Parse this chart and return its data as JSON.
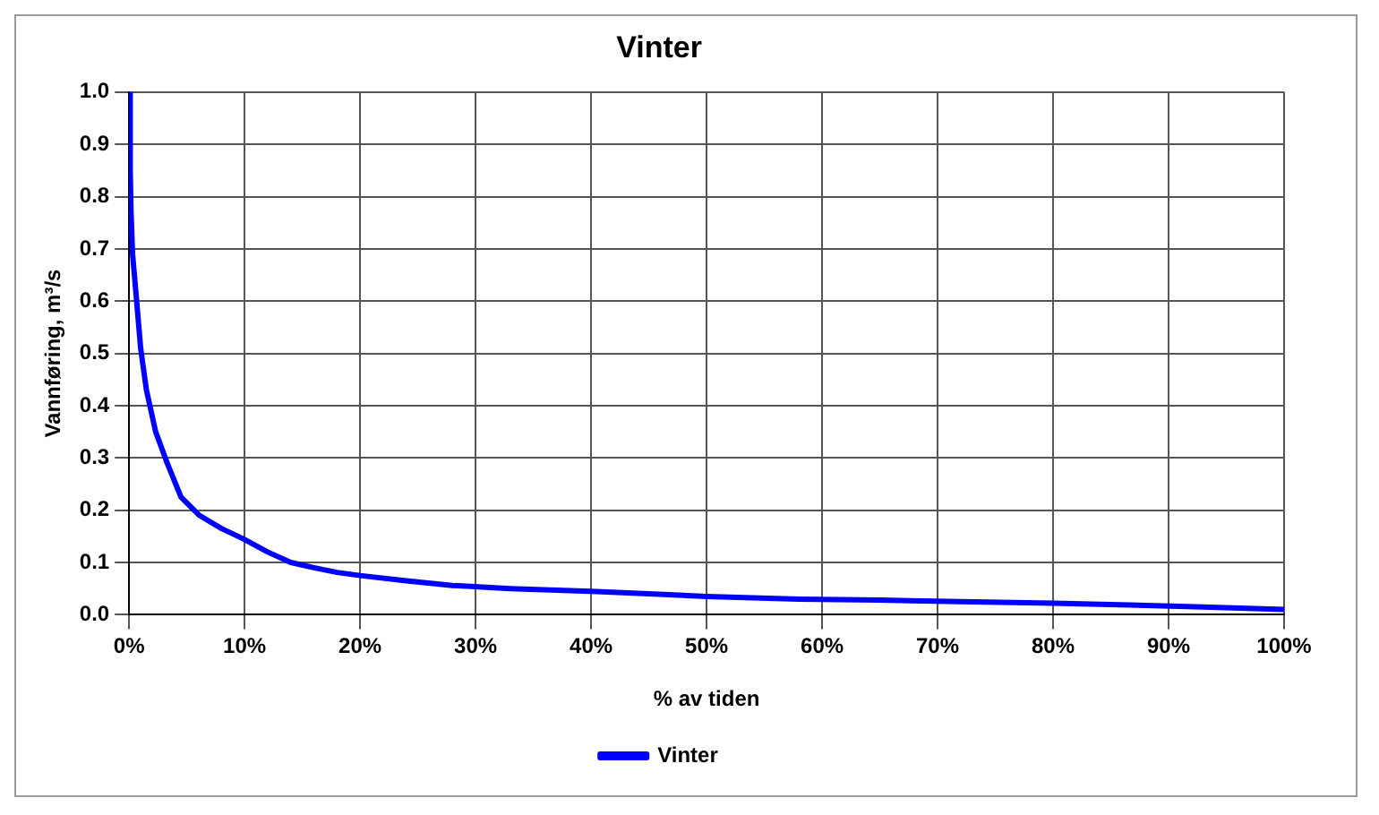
{
  "chart_data": {
    "type": "line",
    "title": "Vinter",
    "xlabel": "% av tiden",
    "ylabel": "Vannføring, m³/s",
    "x": [
      0,
      0.1,
      0.16,
      0.3,
      0.5,
      1,
      1.5,
      2.3,
      3.3,
      4.5,
      6.1,
      8,
      10,
      12,
      14,
      16,
      18,
      20,
      24,
      28,
      33,
      40,
      45,
      50,
      58,
      65,
      72,
      80,
      88,
      93,
      100
    ],
    "series": [
      {
        "name": "Vinter",
        "color": "#0000ff",
        "values": [
          1.0,
          0.85,
          0.775,
          0.69,
          0.64,
          0.51,
          0.43,
          0.35,
          0.29,
          0.225,
          0.19,
          0.165,
          0.144,
          0.12,
          0.1,
          0.09,
          0.081,
          0.075,
          0.065,
          0.056,
          0.05,
          0.045,
          0.04,
          0.035,
          0.03,
          0.028,
          0.025,
          0.022,
          0.018,
          0.015,
          0.01
        ]
      }
    ],
    "xlim": [
      0,
      100
    ],
    "xticks": [
      {
        "value": 0,
        "label": "0%"
      },
      {
        "value": 10,
        "label": "10%"
      },
      {
        "value": 20,
        "label": "20%"
      },
      {
        "value": 30,
        "label": "30%"
      },
      {
        "value": 40,
        "label": "40%"
      },
      {
        "value": 50,
        "label": "50%"
      },
      {
        "value": 60,
        "label": "60%"
      },
      {
        "value": 70,
        "label": "70%"
      },
      {
        "value": 80,
        "label": "80%"
      },
      {
        "value": 90,
        "label": "90%"
      },
      {
        "value": 100,
        "label": "100%"
      }
    ],
    "ylim": [
      0,
      1
    ],
    "yticks": [
      {
        "value": 0,
        "label": "0.0"
      },
      {
        "value": 0.1,
        "label": "0.1"
      },
      {
        "value": 0.2,
        "label": "0.2"
      },
      {
        "value": 0.3,
        "label": "0.3"
      },
      {
        "value": 0.4,
        "label": "0.4"
      },
      {
        "value": 0.5,
        "label": "0.5"
      },
      {
        "value": 0.6,
        "label": "0.6"
      },
      {
        "value": 0.7,
        "label": "0.7"
      },
      {
        "value": 0.8,
        "label": "0.8"
      },
      {
        "value": 0.9,
        "label": "0.9"
      },
      {
        "value": 1,
        "label": "1.0"
      }
    ],
    "grid": true,
    "legend": "bottom"
  }
}
